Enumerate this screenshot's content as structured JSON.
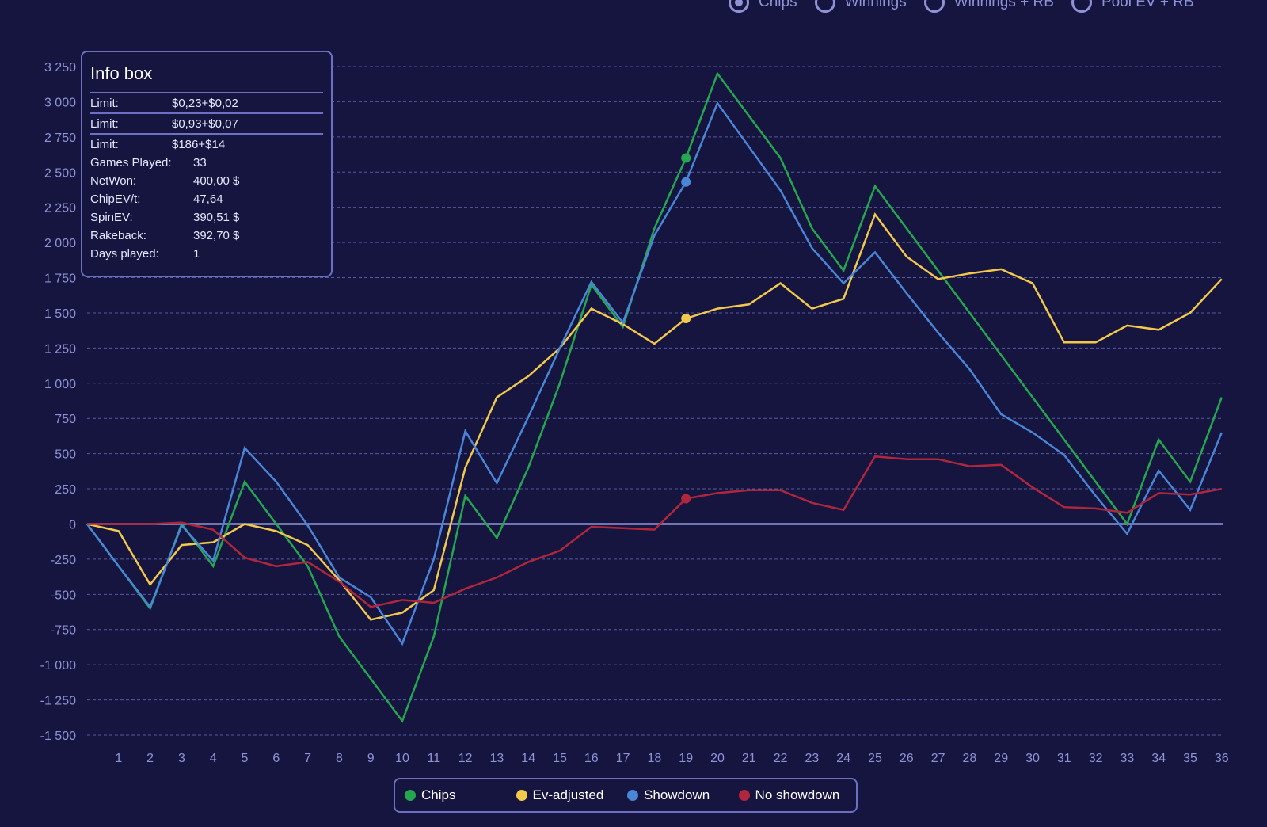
{
  "radio_options": [
    {
      "label": "Chips",
      "checked": true
    },
    {
      "label": "Winnings",
      "checked": false
    },
    {
      "label": "Winnings + RB",
      "checked": false
    },
    {
      "label": "Pool EV + RB",
      "checked": false
    }
  ],
  "info_box": {
    "title": "Info box",
    "limits": [
      {
        "label": "Limit:",
        "value": "$0,23+$0,02"
      },
      {
        "label": "Limit:",
        "value": "$0,93+$0,07"
      },
      {
        "label": "Limit:",
        "value": "$186+$14"
      }
    ],
    "rows": [
      {
        "label": "Games Played:",
        "value": "33"
      },
      {
        "label": "NetWon:",
        "value": "400,00 $"
      },
      {
        "label": "ChipEV/t:",
        "value": "47,64"
      },
      {
        "label": "SpinEV:",
        "value": "390,51 $"
      },
      {
        "label": "Rakeback:",
        "value": "392,70 $"
      },
      {
        "label": "Days played:",
        "value": "1"
      }
    ]
  },
  "colors": {
    "background": "#15153f",
    "axis": "#8f93d6",
    "grid": "#6d70c2",
    "chips": "#24a84f",
    "ev_adjusted": "#f2c94c",
    "showdown": "#4a86d8",
    "no_showdown": "#b0263c"
  },
  "chart_data": {
    "type": "line",
    "title": "",
    "xlabel": "",
    "ylabel": "",
    "x": [
      0,
      1,
      2,
      3,
      4,
      5,
      6,
      7,
      8,
      9,
      10,
      11,
      12,
      13,
      14,
      15,
      16,
      17,
      18,
      19,
      20,
      21,
      22,
      23,
      24,
      25,
      26,
      27,
      28,
      29,
      30,
      31,
      32,
      33,
      34,
      35,
      36
    ],
    "x_tick_labels": [
      "1",
      "2",
      "3",
      "4",
      "5",
      "6",
      "7",
      "8",
      "9",
      "10",
      "11",
      "12",
      "13",
      "14",
      "15",
      "16",
      "17",
      "18",
      "19",
      "20",
      "21",
      "22",
      "23",
      "24",
      "25",
      "26",
      "27",
      "28",
      "29",
      "30",
      "31",
      "32",
      "33",
      "34",
      "35",
      "36"
    ],
    "y_ticks": [
      3250,
      3000,
      2750,
      2500,
      2250,
      2000,
      1750,
      1500,
      1250,
      1000,
      750,
      500,
      250,
      0,
      -250,
      -500,
      -750,
      -1000,
      -1250,
      -1500
    ],
    "y_tick_labels": [
      "3 250",
      "3 000",
      "2 750",
      "2 500",
      "2 250",
      "2 000",
      "1 750",
      "1 500",
      "1 250",
      "1 000",
      "750",
      "500",
      "250",
      "0",
      "-250",
      "-500",
      "-750",
      "-1 000",
      "-1 250",
      "-1 500"
    ],
    "ylim": [
      -1500,
      3250
    ],
    "grid": true,
    "legend_position": "bottom-center",
    "highlight_x": 19,
    "series": [
      {
        "name": "Chips",
        "color_key": "chips",
        "values": [
          0,
          -300,
          -600,
          0,
          -300,
          300,
          0,
          -300,
          -800,
          -1100,
          -1400,
          -800,
          200,
          -100,
          400,
          1000,
          1700,
          1400,
          2100,
          2600,
          3200,
          2900,
          2600,
          2100,
          1800,
          2400,
          2100,
          1800,
          1500,
          1200,
          900,
          600,
          300,
          0,
          600,
          300,
          900
        ]
      },
      {
        "name": "Ev-adjusted",
        "color_key": "ev_adjusted",
        "values": [
          0,
          -50,
          -430,
          -150,
          -130,
          0,
          -50,
          -150,
          -400,
          -680,
          -630,
          -470,
          400,
          900,
          1050,
          1250,
          1530,
          1420,
          1280,
          1460,
          1530,
          1560,
          1710,
          1530,
          1600,
          2200,
          1900,
          1740,
          1780,
          1810,
          1710,
          1290,
          1290,
          1410,
          1380,
          1500,
          1740
        ]
      },
      {
        "name": "Showdown",
        "color_key": "showdown",
        "values": [
          0,
          -300,
          -590,
          -10,
          -260,
          540,
          300,
          -10,
          -380,
          -520,
          -850,
          -250,
          660,
          290,
          760,
          1250,
          1720,
          1430,
          2050,
          2430,
          2990,
          2680,
          2370,
          1960,
          1710,
          1930,
          1640,
          1360,
          1100,
          780,
          650,
          490,
          200,
          -70,
          380,
          100,
          650
        ]
      },
      {
        "name": "No showdown",
        "color_key": "no_showdown",
        "values": [
          0,
          0,
          0,
          10,
          -40,
          -240,
          -300,
          -270,
          -410,
          -590,
          -540,
          -560,
          -460,
          -380,
          -270,
          -190,
          -20,
          -30,
          -40,
          180,
          220,
          240,
          240,
          150,
          100,
          480,
          460,
          460,
          410,
          420,
          260,
          120,
          110,
          80,
          220,
          210,
          250
        ]
      }
    ]
  },
  "legend": [
    {
      "label": "Chips",
      "color_key": "chips"
    },
    {
      "label": "Ev-adjusted",
      "color_key": "ev_adjusted"
    },
    {
      "label": "Showdown",
      "color_key": "showdown"
    },
    {
      "label": "No showdown",
      "color_key": "no_showdown"
    }
  ]
}
